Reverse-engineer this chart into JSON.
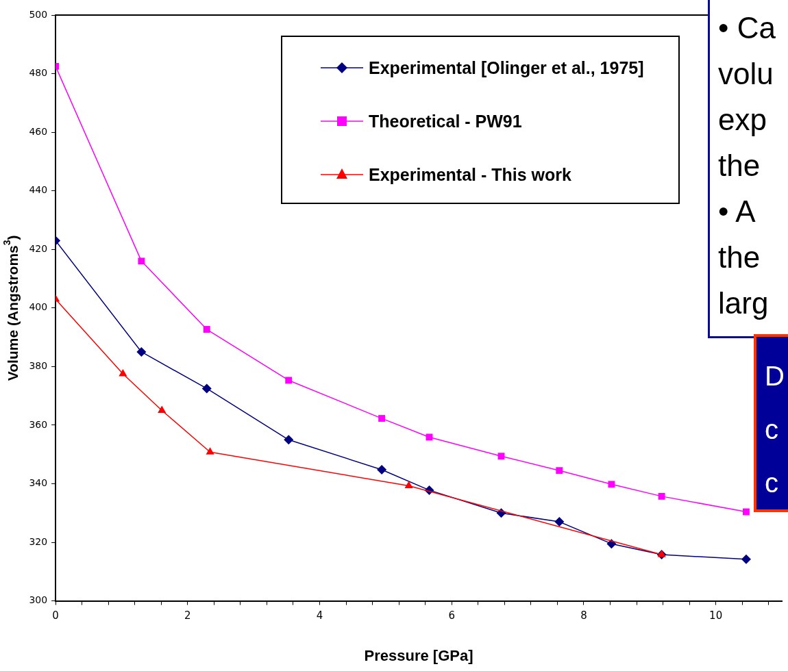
{
  "chart_data": {
    "type": "line",
    "xlabel": "Pressure [GPa]",
    "ylabel": "Volume (Angstroms$^{3}$)",
    "xlim": [
      0,
      11
    ],
    "ylim": [
      300,
      500
    ],
    "xticks": [
      0,
      {
        "value": 0.4,
        "label": null
      },
      {
        "value": 0.8,
        "label": null
      },
      {
        "value": 1.2,
        "label": null
      },
      {
        "value": 1.6,
        "label": null
      },
      2,
      {
        "value": 2.4,
        "label": null
      },
      {
        "value": 2.8,
        "label": null
      },
      {
        "value": 3.2,
        "label": null
      },
      {
        "value": 3.6,
        "label": null
      },
      4,
      {
        "value": 4.4,
        "label": null
      },
      {
        "value": 4.8,
        "label": null
      },
      {
        "value": 5.2,
        "label": null
      },
      {
        "value": 5.6,
        "label": null
      },
      6,
      {
        "value": 6.4,
        "label": null
      },
      {
        "value": 6.8,
        "label": null
      },
      {
        "value": 7.2,
        "label": null
      },
      {
        "value": 7.6,
        "label": null
      },
      8,
      {
        "value": 8.4,
        "label": null
      },
      {
        "value": 8.8,
        "label": null
      },
      {
        "value": 9.2,
        "label": null
      },
      {
        "value": 9.6,
        "label": null
      },
      10,
      {
        "value": 10.4,
        "label": null
      },
      {
        "value": 10.8,
        "label": null
      }
    ],
    "yticks": [
      300,
      320,
      340,
      360,
      380,
      400,
      420,
      440,
      460,
      480,
      500
    ],
    "grid": false,
    "legend": "top",
    "line_style": "solid",
    "series": [
      {
        "name": "Experimental [Olinger et al., 1975]",
        "color": "#000080",
        "marker": "diamond",
        "x": [
          0,
          1.3,
          2.29,
          3.53,
          4.94,
          5.66,
          6.75,
          7.63,
          8.42,
          9.18,
          10.46
        ],
        "values": [
          423,
          385,
          372.5,
          355,
          344.8,
          337.8,
          330,
          327,
          319.5,
          315.8,
          314.2
        ]
      },
      {
        "name": "Theoretical - PW91",
        "color": "#ff00ff",
        "marker": "square",
        "x": [
          0,
          1.3,
          2.29,
          3.53,
          4.94,
          5.66,
          6.75,
          7.63,
          8.42,
          9.18,
          10.46
        ],
        "values": [
          482.5,
          416,
          392.7,
          375.3,
          362.3,
          355.9,
          349.4,
          344.5,
          339.8,
          335.7,
          330.4
        ]
      },
      {
        "name": "Experimental - This work",
        "color": "#ff0000",
        "marker": "triangle",
        "x": [
          0,
          1.02,
          1.61,
          2.34,
          5.35,
          9.18
        ],
        "values": [
          403,
          377.5,
          365,
          350.8,
          339.3,
          315.8
        ]
      }
    ],
    "annotations": [
      "• Ca\nvolu\nexp\nthe\n• A\nthe\nlarg",
      "D\nc\nc"
    ]
  }
}
